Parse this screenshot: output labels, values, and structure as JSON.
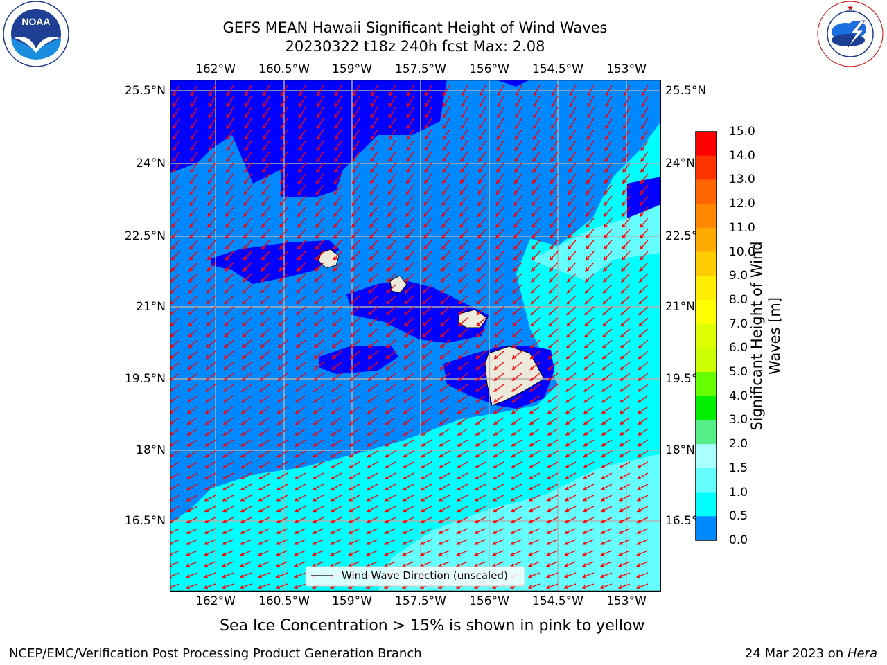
{
  "title": {
    "line1": "GEFS MEAN Hawaii Significant Height of Wind Waves",
    "line2": "20230322 t18z 240h fcst   Max: 2.08"
  },
  "logos": {
    "left": {
      "text": "NOAA",
      "ring_text": "NATIONAL OCEANIC AND ATMOSPHERIC ADMINISTRATION",
      "ring_text_bottom": "U.S. DEPARTMENT OF COMMERCE"
    },
    "right": {
      "ring_text": "NATIONAL WEATHER SERVICE"
    }
  },
  "map": {
    "lon_ticks": [
      "162°W",
      "160.5°W",
      "159°W",
      "157.5°W",
      "156°W",
      "154.5°W",
      "153°W"
    ],
    "lat_ticks": [
      "25.5°N",
      "24°N",
      "22.5°N",
      "21°N",
      "19.5°N",
      "18°N",
      "16.5°N"
    ],
    "legend": "Wind Wave Direction (unscaled)",
    "arrow_color": "#ff0000",
    "land_color": "#eeeadb"
  },
  "colorbar": {
    "title_line1": "Significant Height of Wind",
    "title_line2": "Waves [m]",
    "labels": [
      "15.0",
      "14.0",
      "13.0",
      "12.0",
      "11.0",
      "10.0",
      "9.0",
      "8.0",
      "7.0",
      "6.0",
      "5.0",
      "4.0",
      "3.0",
      "2.0",
      "1.5",
      "1.0",
      "0.5",
      "0.0"
    ],
    "colors": [
      "#ff0000",
      "#ff3300",
      "#ff6600",
      "#ff8800",
      "#ffaa00",
      "#ffcc00",
      "#ffee00",
      "#ffff00",
      "#ddff00",
      "#ccff00",
      "#66ff00",
      "#00ee00",
      "#55ee88",
      "#aaffff",
      "#66ffff",
      "#00ffff",
      "#0088ff",
      "#0000ff"
    ]
  },
  "note": "Sea Ice Concentration > 15% is shown in pink to yellow",
  "footer": {
    "left": "NCEP/EMC/Verification Post Processing Product Generation Branch",
    "right_prefix": "24 Mar 2023 on ",
    "right_host": "Hera"
  }
}
